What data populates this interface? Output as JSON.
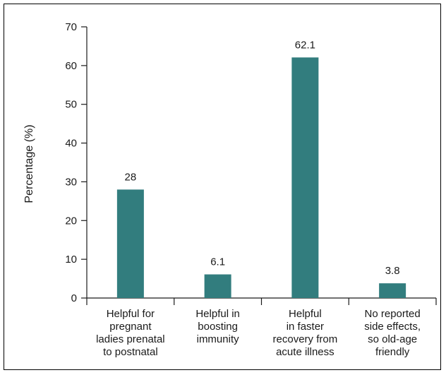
{
  "chart_data": {
    "type": "bar",
    "title": "",
    "xlabel": "",
    "ylabel": "Percentage (%)",
    "ylim": [
      0,
      70
    ],
    "yticks": [
      0,
      10,
      20,
      30,
      40,
      50,
      60,
      70
    ],
    "grid": false,
    "legend": "none",
    "categories": [
      [
        "Helpful for",
        "pregnant",
        "ladies prenatal",
        "to postnatal"
      ],
      [
        "Helpful in",
        "boosting",
        "immunity"
      ],
      [
        "Helpful",
        "in faster",
        "recovery from",
        "acute illness"
      ],
      [
        "No reported",
        "side effects,",
        "so old-age",
        "friendly"
      ]
    ],
    "values": [
      28,
      6.1,
      62.1,
      3.8
    ],
    "value_labels": [
      "28",
      "6.1",
      "62.1",
      "3.8"
    ],
    "bar_color": "#327d7e",
    "axis_color": "#1a1a1a"
  }
}
